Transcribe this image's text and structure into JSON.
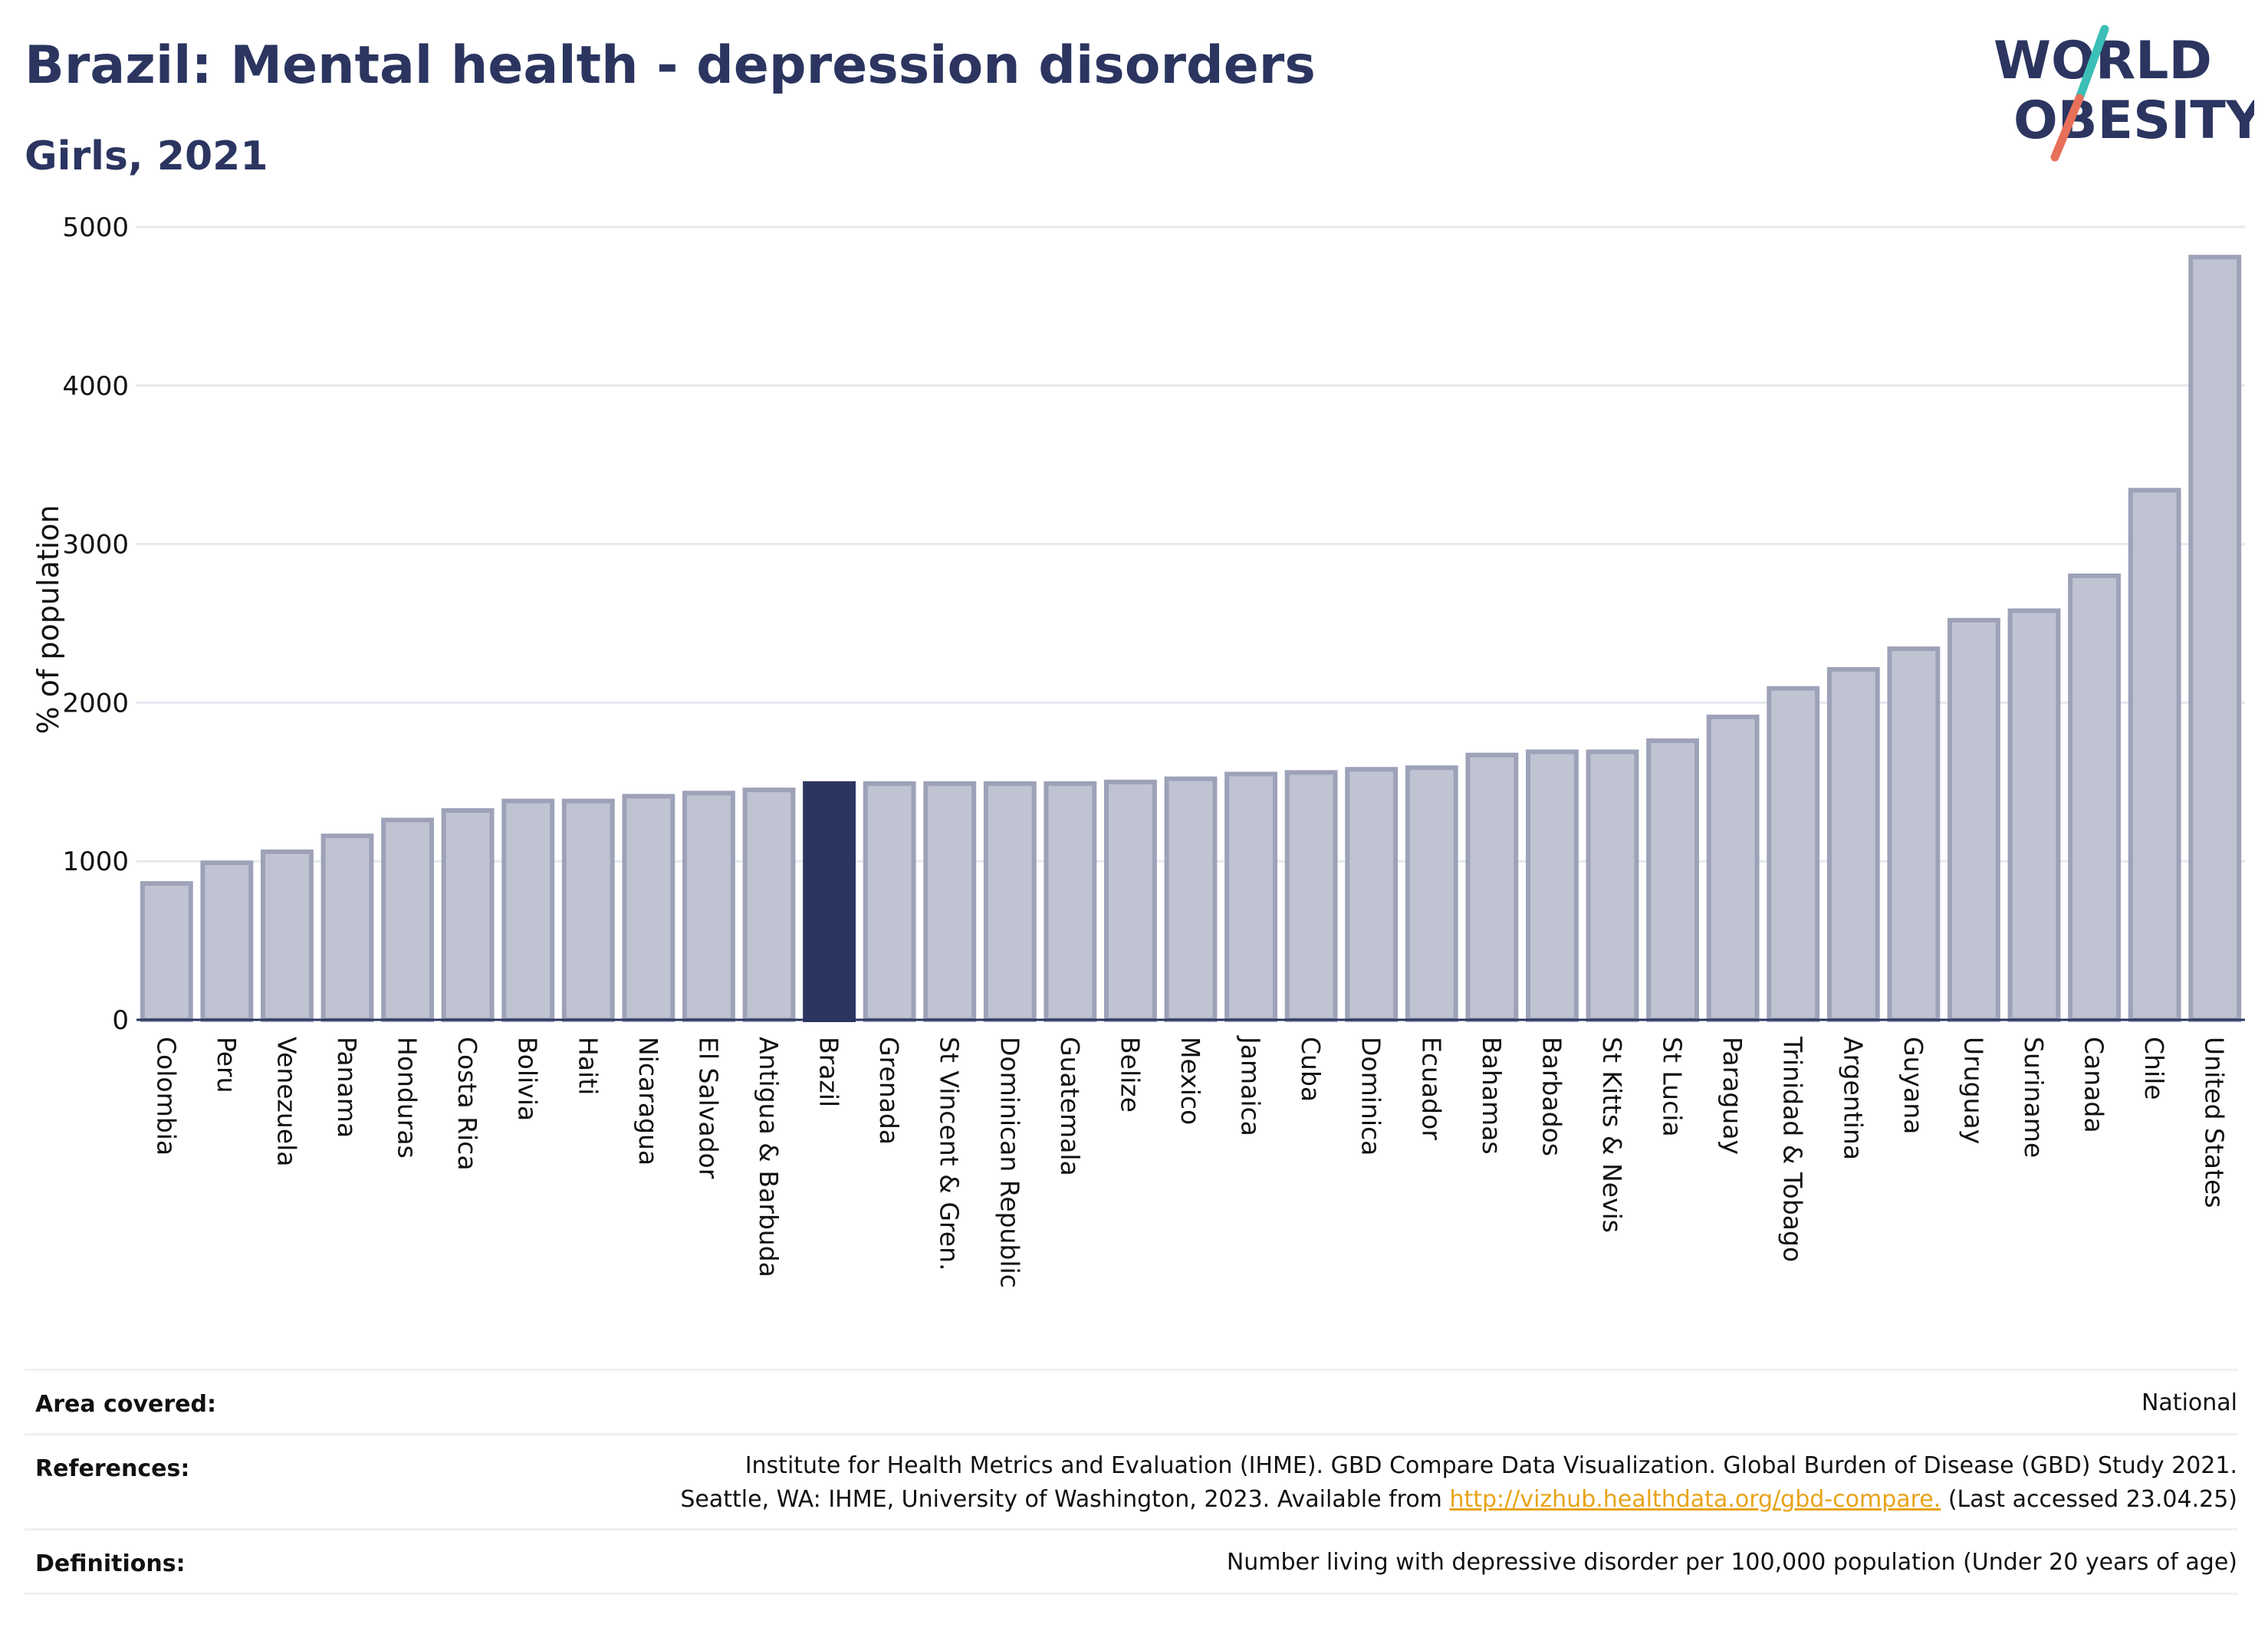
{
  "header": {
    "title": "Brazil: Mental health - depression disorders",
    "subtitle": "Girls, 2021"
  },
  "logo": {
    "line1": "WORLD",
    "line2": "OBESITY",
    "colors": {
      "text": "#2b3560",
      "slash_teal": "#3bbfb7",
      "slash_coral": "#e8705a"
    }
  },
  "chart_data": {
    "type": "bar",
    "title": "Brazil: Mental health - depression disorders",
    "subtitle": "Girls, 2021",
    "xlabel": "",
    "ylabel": "% of population",
    "ylim": [
      0,
      5000
    ],
    "yticks": [
      0,
      1000,
      2000,
      3000,
      4000,
      5000
    ],
    "grid": true,
    "highlight": "Brazil",
    "colors": {
      "bar": "#c0c3d1",
      "bar_edge": "#9da2b8",
      "highlight": "#2b3560",
      "grid": "#e6e8ee",
      "axis": "#2b3560"
    },
    "categories": [
      "Colombia",
      "Peru",
      "Venezuela",
      "Panama",
      "Honduras",
      "Costa Rica",
      "Bolivia",
      "Haiti",
      "Nicaragua",
      "El Salvador",
      "Antigua & Barbuda",
      "Brazil",
      "Grenada",
      "St Vincent & Gren.",
      "Dominican Republic",
      "Guatemala",
      "Belize",
      "Mexico",
      "Jamaica",
      "Cuba",
      "Dominica",
      "Ecuador",
      "Bahamas",
      "Barbados",
      "St Kitts & Nevis",
      "St Lucia",
      "Paraguay",
      "Trinidad & Tobago",
      "Argentina",
      "Guyana",
      "Uruguay",
      "Suriname",
      "Canada",
      "Chile",
      "United States"
    ],
    "values": [
      860,
      990,
      1060,
      1160,
      1260,
      1320,
      1380,
      1380,
      1410,
      1430,
      1450,
      1490,
      1490,
      1490,
      1490,
      1490,
      1500,
      1520,
      1550,
      1560,
      1580,
      1590,
      1670,
      1690,
      1690,
      1760,
      1910,
      2090,
      2210,
      2340,
      2520,
      2580,
      2800,
      3340,
      4810
    ]
  },
  "footer": {
    "area_label": "Area covered:",
    "area_value": "National",
    "references_label": "References:",
    "references_line1": "Institute for Health Metrics and Evaluation (IHME). GBD Compare Data Visualization. Global Burden of Disease (GBD) Study 2021.",
    "references_line2_pre": "Seattle, WA: IHME, University of Washington, 2023. Available from ",
    "references_link": "http://vizhub.healthdata.org/gbd-compare.",
    "references_line2_post": " (Last accessed 23.04.25)",
    "definitions_label": "Definitions:",
    "definitions_value": "Number living with depressive disorder per 100,000 population (Under 20 years of age)"
  }
}
